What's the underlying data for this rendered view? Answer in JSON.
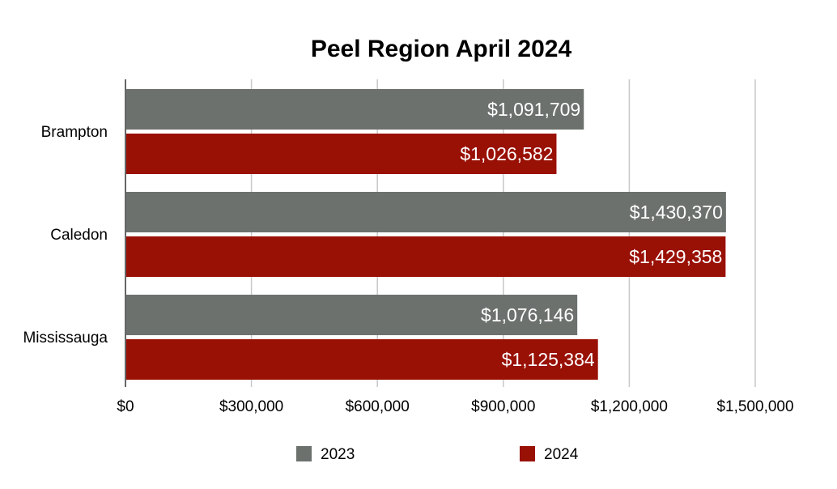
{
  "chart_data": {
    "type": "bar",
    "orientation": "horizontal",
    "title": "Peel Region April 2024",
    "xlabel": "",
    "ylabel": "",
    "categories": [
      "Brampton",
      "Caledon",
      "Mississauga"
    ],
    "series": [
      {
        "name": "2023",
        "color": "#6d716e",
        "values": [
          1091709,
          1430370,
          1076146
        ],
        "labels": [
          "$1,091,709",
          "$1,430,370",
          "$1,076,146"
        ]
      },
      {
        "name": "2024",
        "color": "#991005",
        "values": [
          1026582,
          1429358,
          1125384
        ],
        "labels": [
          "$1,026,582",
          "$1,429,358",
          "$1,125,384"
        ]
      }
    ],
    "xlim": [
      0,
      1500000
    ],
    "ticks": [
      0,
      300000,
      600000,
      900000,
      1200000,
      1500000
    ],
    "tick_labels": [
      "$0",
      "$300,000",
      "$600,000",
      "$900,000",
      "$1,200,000",
      "$1,500,000"
    ],
    "grid": true,
    "legend": "bottom"
  }
}
